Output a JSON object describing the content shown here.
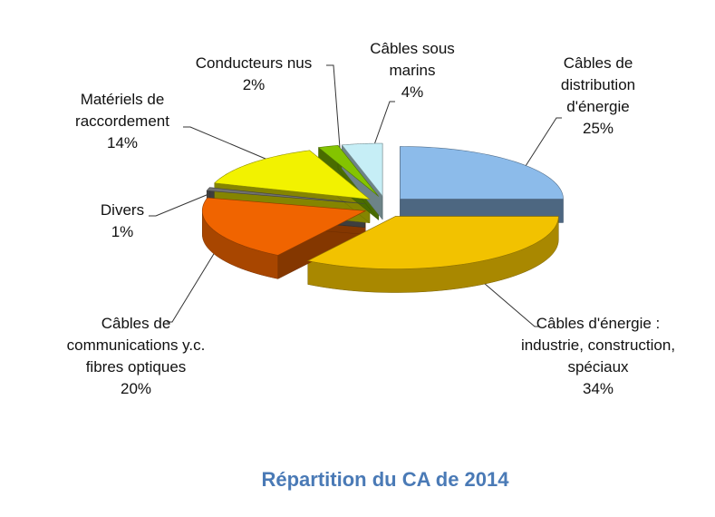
{
  "chart_data": {
    "type": "pie3d",
    "title": "Répartition du CA de 2014",
    "categories": [
      "Câbles de distribution d'énergie",
      "Câbles d'énergie : industrie, construction, spéciaux",
      "Câbles de communications y.c. fibres optiques",
      "Divers",
      "Matériels de raccordement",
      "Conducteurs nus",
      "Câbles sous marins"
    ],
    "values": [
      25,
      34,
      20,
      1,
      14,
      2,
      4
    ],
    "value_labels": [
      "25%",
      "34%",
      "20%",
      "1%",
      "14%",
      "2%",
      "4%"
    ],
    "colors": [
      "#8cbbea",
      "#f2c200",
      "#f06400",
      "#707070",
      "#f2f200",
      "#84c400",
      "#c6eef6"
    ]
  }
}
